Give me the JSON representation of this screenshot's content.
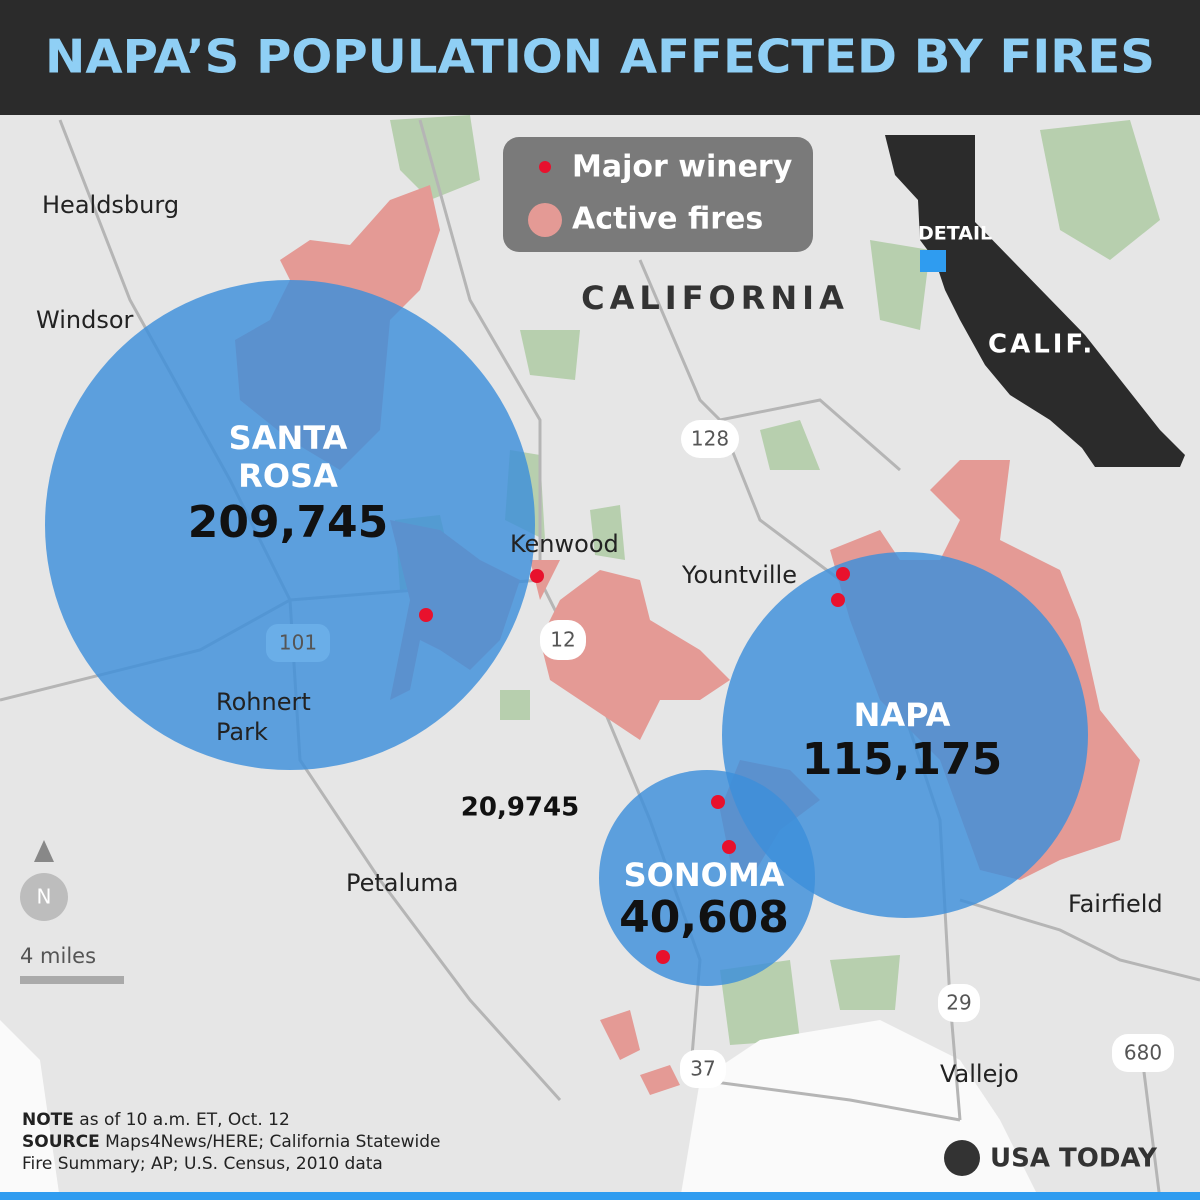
{
  "header": {
    "title": "NAPA’S POPULATION AFFECTED BY FIRES"
  },
  "legend": {
    "items": [
      "Major winery",
      "Active fires"
    ]
  },
  "map": {
    "region_label": "CALIFORNIA",
    "places": [
      "Healdsburg",
      "Windsor",
      "Kenwood",
      "Yountville",
      "Petaluma",
      "Fairfield",
      "Vallejo"
    ],
    "rohnert_park": [
      "Rohnert",
      "Park"
    ],
    "highways": [
      "128",
      "12",
      "101",
      "29",
      "37",
      "680"
    ],
    "areas": [
      {
        "name": [
          "SANTA",
          "ROSA"
        ],
        "population": "209,745"
      },
      {
        "name": [
          "NAPA"
        ],
        "population": "115,175"
      },
      {
        "name": [
          "SONOMA"
        ],
        "population": "40,608"
      }
    ],
    "stray_label": "20,9745"
  },
  "inset": {
    "detail": "DETAIL",
    "state": "CALIF."
  },
  "compass": "N",
  "scale": "4 miles",
  "notes": [
    {
      "label": "NOTE",
      "lines": [
        "as of 10 a.m. ET, Oct. 12"
      ]
    },
    {
      "label": "SOURCE",
      "lines": [
        "Maps4News/HERE; California Statewide",
        "Fire Summary; AP; U.S. Census, 2010 data"
      ]
    }
  ],
  "brand": "USA TODAY"
}
